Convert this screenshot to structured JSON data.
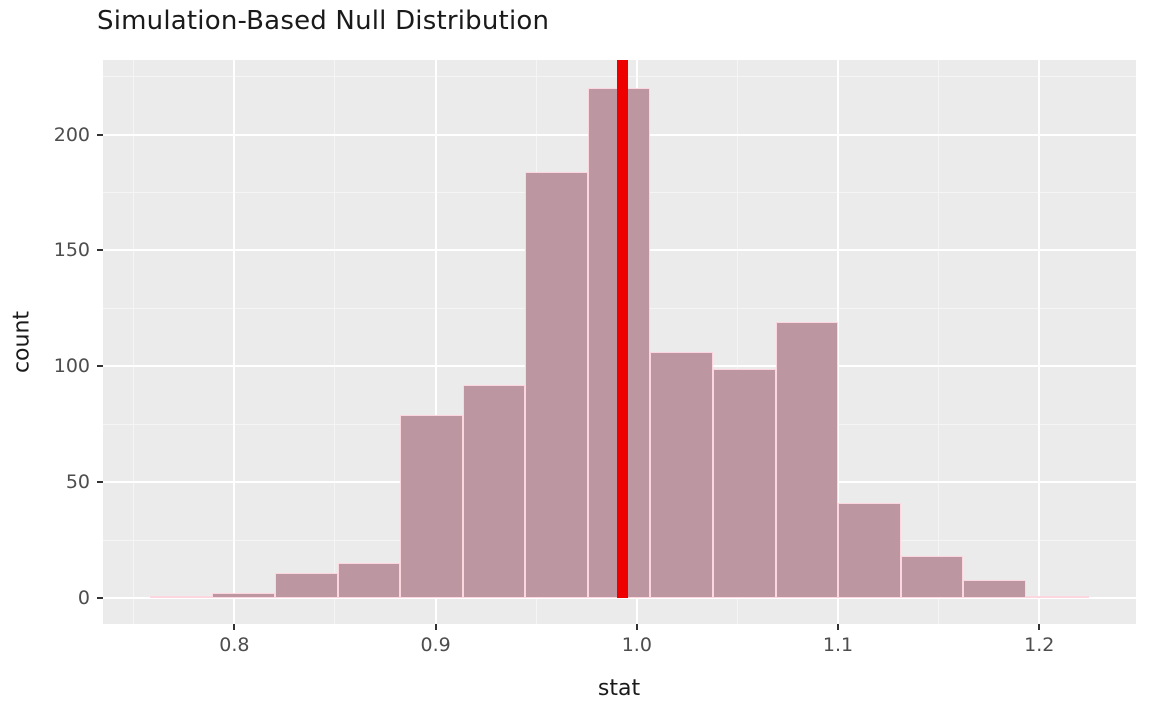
{
  "chart_data": {
    "type": "bar",
    "subtype": "histogram",
    "title": "Simulation-Based Null Distribution",
    "xlabel": "stat",
    "ylabel": "count",
    "legend": "none",
    "grid": true,
    "bins": {
      "start": 0.758,
      "width": 0.0311,
      "counts": [
        1,
        2,
        11,
        15,
        79,
        92,
        184,
        220,
        106,
        99,
        119,
        41,
        18,
        8,
        1
      ]
    },
    "observed_stat_line": {
      "x": 0.993,
      "color": "#EE0000",
      "thickness_px": 11
    },
    "x_axis": {
      "tick_values": [
        0.8,
        0.9,
        1.0,
        1.1,
        1.2
      ],
      "tick_labels": [
        "0.8",
        "0.9",
        "1.0",
        "1.1",
        "1.2"
      ],
      "minor_values": [
        0.75,
        0.85,
        0.95,
        1.05,
        1.15
      ],
      "range": [
        0.7347,
        1.2481
      ]
    },
    "y_axis": {
      "tick_values": [
        0,
        50,
        100,
        150,
        200
      ],
      "tick_labels": [
        "0",
        "50",
        "100",
        "150",
        "200"
      ],
      "minor_values": [
        25,
        75,
        125,
        175,
        225
      ],
      "range": [
        -11.2,
        232.2
      ]
    },
    "colors": {
      "bar_fill": "#BC96A0",
      "bar_stroke": "#FCD7DF",
      "panel_bg": "#EBEBEB",
      "grid_major": "#FFFFFF",
      "grid_minor": "#F5F5F5",
      "tick_label": "#4D4D4D",
      "text": "#1A1A1A",
      "tick_mark": "#333333"
    }
  }
}
